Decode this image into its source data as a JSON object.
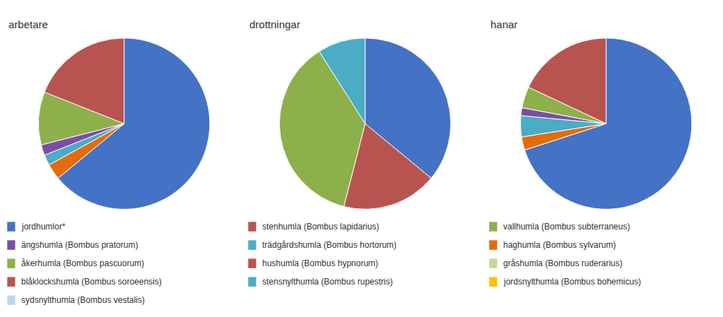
{
  "chart_data": [
    {
      "type": "pie",
      "title": "arbetare",
      "values": [
        64,
        3,
        2,
        2,
        10,
        19
      ],
      "colors": [
        "#4472C4",
        "#E36C09",
        "#4BACC6",
        "#7B4EA6",
        "#8DB04A",
        "#B85450"
      ]
    },
    {
      "type": "pie",
      "title": "drottningar",
      "values": [
        36,
        18,
        37,
        9
      ],
      "colors": [
        "#4472C4",
        "#B85450",
        "#8DB04A",
        "#4BACC6"
      ]
    },
    {
      "type": "pie",
      "title": "hanar",
      "values": [
        70,
        2.5,
        4,
        1.5,
        4,
        18
      ],
      "colors": [
        "#4472C4",
        "#E36C09",
        "#4BACC6",
        "#7B4EA6",
        "#8DB04A",
        "#B85450"
      ]
    }
  ],
  "legend_entries": [
    [
      {
        "name": "jordhumlor*",
        "color": "#4472C4"
      },
      {
        "name": "ängshumla (Bombus pratorum)",
        "color": "#7B4EA6"
      },
      {
        "name": "åkerhumla (Bombus pascuorum)",
        "color": "#8DB04A"
      },
      {
        "name": "blåklockshumla (Bombus soroeensis)",
        "color": "#B85450"
      },
      {
        "name": "sydsnylthumla (Bombus vestalis)",
        "color": "#BDD7EE"
      }
    ],
    [
      {
        "name": "stenhumla (Bombus lapidarius)",
        "color": "#B85450"
      },
      {
        "name": "trädgårdshumla (Bombus hortorum)",
        "color": "#4BACC6"
      },
      {
        "name": "hushumla (Bombus hypnorum)",
        "color": "#B85450"
      },
      {
        "name": "stensnylthumla (Bombus rupestris)",
        "color": "#4BACC6"
      }
    ],
    [
      {
        "name": "vallhumla (Bombus subterraneus)",
        "color": "#8DB04A"
      },
      {
        "name": "haghumla (Bombus sylvarum)",
        "color": "#E36C09"
      },
      {
        "name": "gråshumla (Bombus ruderarius)",
        "color": "#C4D79B"
      },
      {
        "name": "jordsnylthumla (Bombus bohemicus)",
        "color": "#FFC000"
      }
    ]
  ]
}
